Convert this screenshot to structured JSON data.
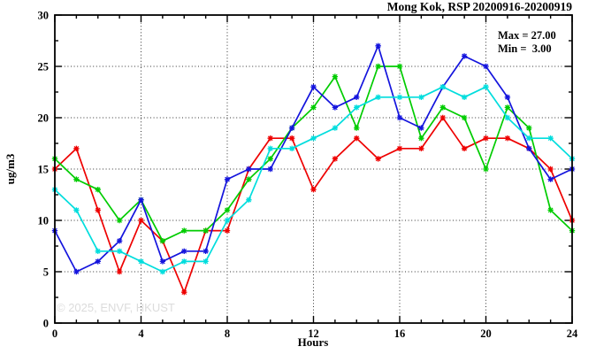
{
  "title": "Mong Kok, RSP 20200916-20200919",
  "annotation": {
    "max_label": "Max = 27.00",
    "min_label": "Min =  3.00"
  },
  "watermark": "© 2025, ENVF, HKUST",
  "axes": {
    "xlabel": "Hours",
    "ylabel": "ug/m3"
  },
  "chart_data": {
    "type": "line",
    "title": "Mong Kok, RSP 20200916-20200919",
    "xlabel": "Hours",
    "ylabel": "ug/m3",
    "xlim": [
      0,
      24
    ],
    "ylim": [
      0,
      30
    ],
    "xticks_major": [
      0,
      4,
      8,
      12,
      16,
      20,
      24
    ],
    "yticks_major": [
      0,
      5,
      10,
      15,
      20,
      25,
      30
    ],
    "x_minor_step": 1,
    "y_minor_step": 2.5,
    "grid_x": [
      4,
      8,
      12,
      16,
      20
    ],
    "grid_y": [
      5,
      10,
      15,
      20,
      25
    ],
    "grid_on": true,
    "legend": "none",
    "x": [
      0,
      1,
      2,
      3,
      4,
      5,
      6,
      7,
      8,
      9,
      10,
      11,
      12,
      13,
      14,
      15,
      16,
      17,
      18,
      19,
      20,
      21,
      22,
      23,
      24
    ],
    "series": [
      {
        "name": "red",
        "color": "#ee0000",
        "values": [
          15,
          17,
          11,
          5,
          10,
          8,
          3,
          9,
          9,
          15,
          18,
          18,
          13,
          16,
          18,
          16,
          17,
          17,
          20,
          17,
          18,
          18,
          17,
          15,
          10
        ]
      },
      {
        "name": "green",
        "color": "#00cc00",
        "values": [
          16,
          14,
          13,
          10,
          12,
          8,
          9,
          9,
          11,
          14,
          16,
          19,
          21,
          24,
          19,
          25,
          25,
          18,
          21,
          20,
          15,
          21,
          19,
          11,
          9
        ]
      },
      {
        "name": "blue",
        "color": "#1414dd",
        "values": [
          9,
          5,
          6,
          8,
          12,
          6,
          7,
          7,
          14,
          15,
          15,
          19,
          23,
          21,
          22,
          27,
          20,
          19,
          23,
          26,
          25,
          22,
          17,
          14,
          15
        ]
      },
      {
        "name": "cyan",
        "color": "#00dddd",
        "values": [
          13,
          11,
          7,
          7,
          6,
          5,
          6,
          6,
          10,
          12,
          17,
          17,
          18,
          19,
          21,
          22,
          22,
          22,
          23,
          22,
          23,
          20,
          18,
          18,
          16
        ]
      }
    ],
    "max": 27.0,
    "min": 3.0
  }
}
